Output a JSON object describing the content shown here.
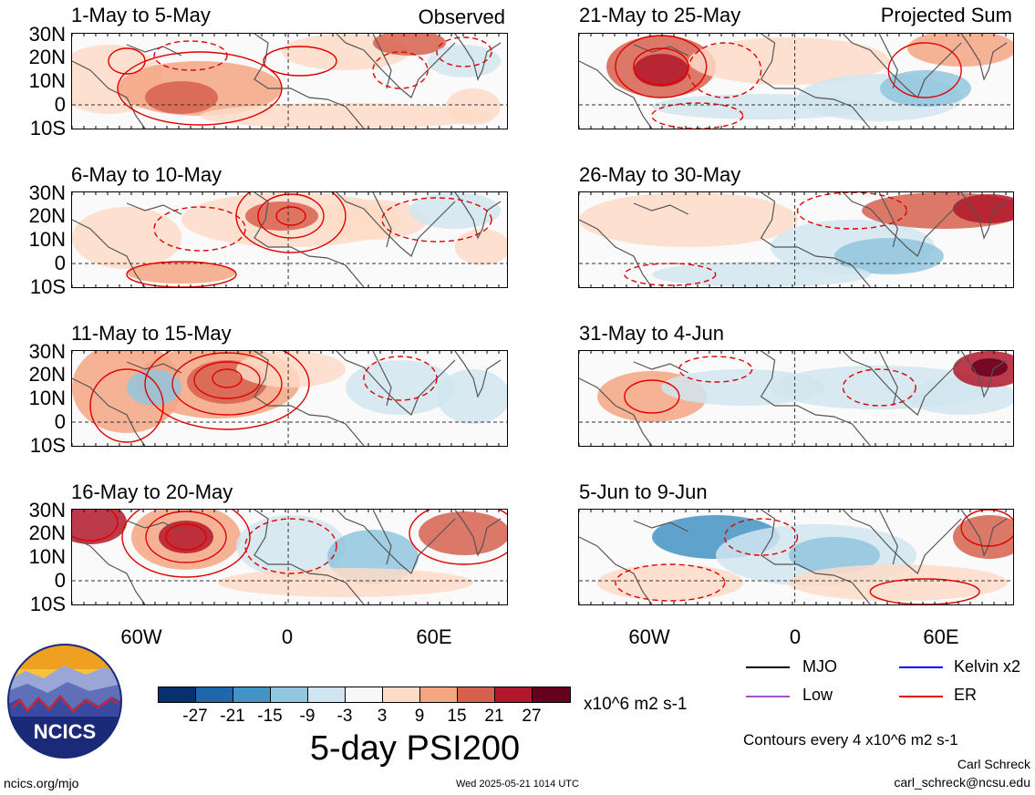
{
  "header": {
    "observed_label": "Observed",
    "projected_label": "Projected Sum"
  },
  "panels": [
    {
      "title": "1-May to 5-May"
    },
    {
      "title": "6-May to 10-May"
    },
    {
      "title": "11-May to 15-May"
    },
    {
      "title": "16-May to 20-May"
    },
    {
      "title": "21-May to 25-May"
    },
    {
      "title": "26-May to 30-May"
    },
    {
      "title": "31-May to 4-Jun"
    },
    {
      "title": "5-Jun to 9-Jun"
    }
  ],
  "axes": {
    "lat_labels": [
      "30N",
      "20N",
      "10N",
      "0",
      "10S"
    ],
    "lon_labels": [
      "60W",
      "0",
      "60E"
    ]
  },
  "colorbar": {
    "colors": [
      "#08306b",
      "#2166ac",
      "#4393c3",
      "#92c5de",
      "#d1e5f0",
      "#f7f7f7",
      "#fddbc7",
      "#f4a582",
      "#d6604d",
      "#b2182b",
      "#67001f"
    ],
    "labels": [
      "-27",
      "-21",
      "-15",
      "-9",
      "-3",
      "3",
      "9",
      "15",
      "21",
      "27"
    ],
    "units": "x10^6 m2 s-1"
  },
  "title": "5-day PSI200",
  "legend": {
    "items": [
      {
        "label": "MJO",
        "color": "#000000"
      },
      {
        "label": "Kelvin x2",
        "color": "#0000ff"
      },
      {
        "label": "Low",
        "color": "#a050d0"
      },
      {
        "label": "ER",
        "color": "#e00000"
      }
    ],
    "contour_note": "Contours every 4 x10^6 m2 s-1"
  },
  "logo": {
    "text": "NCICS"
  },
  "footer": {
    "url": "ncics.org/mjo",
    "timestamp": "Wed 2025-05-21 1014 UTC",
    "author": "Carl Schreck",
    "email": "carl_schreck@ncsu.edu"
  }
}
